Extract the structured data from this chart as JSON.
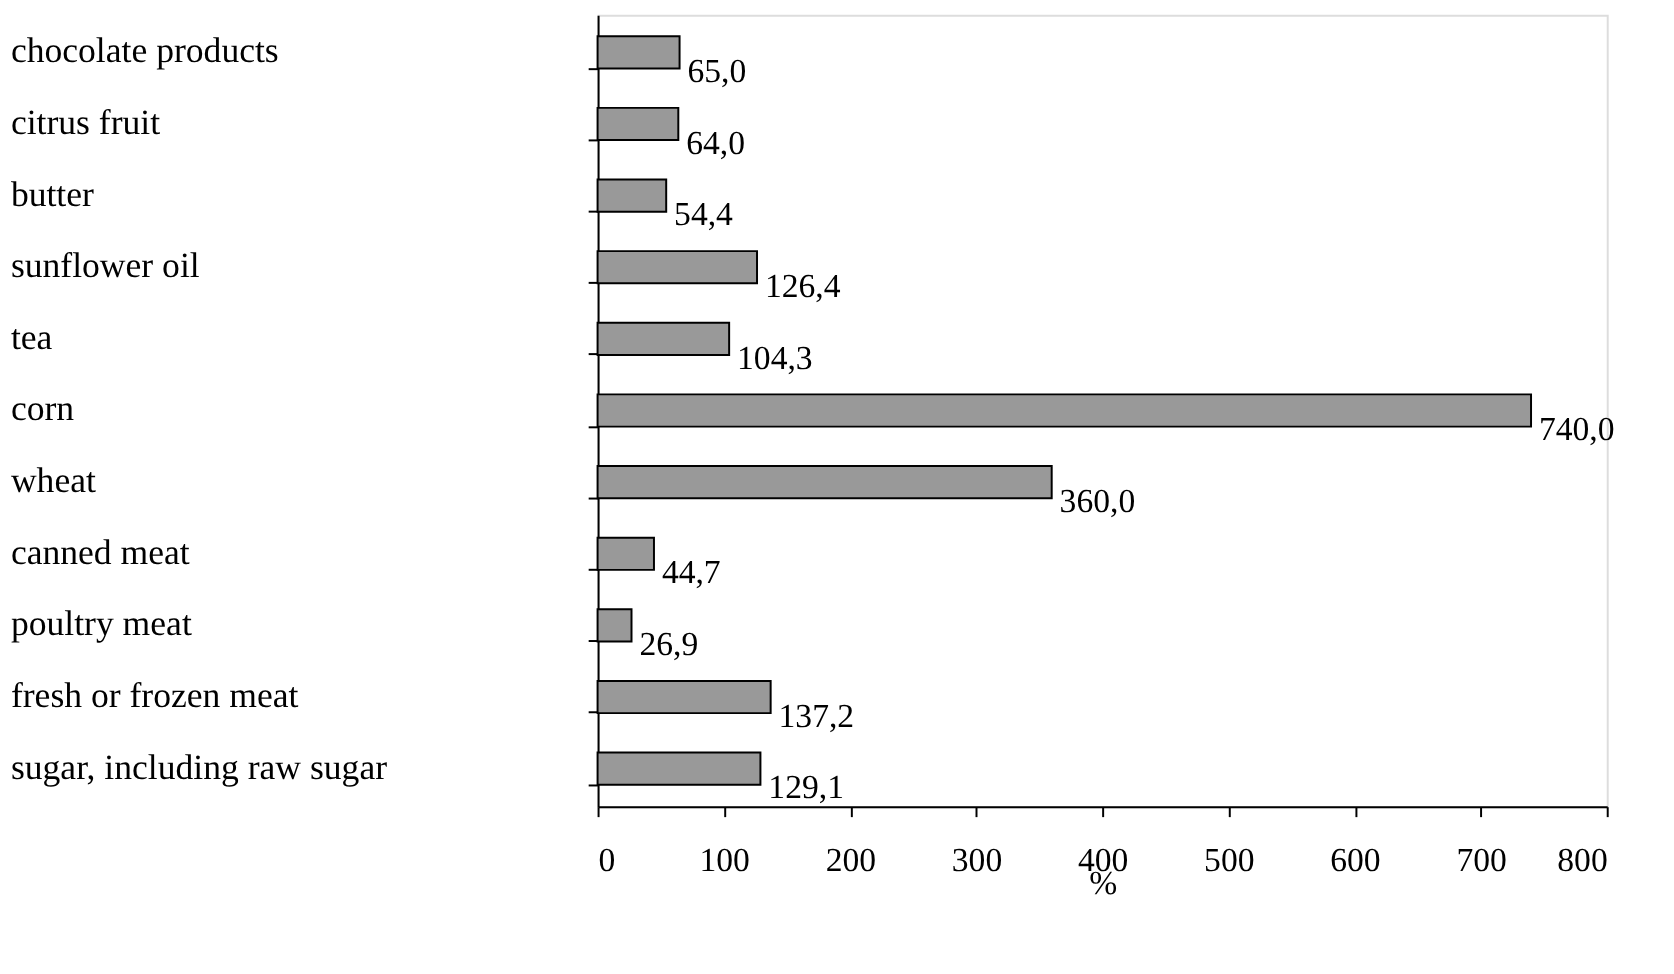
{
  "chart_data": {
    "type": "bar",
    "orientation": "horizontal",
    "xlabel": "%",
    "categories": [
      "chocolate products",
      "citrus fruit",
      "butter",
      "sunflower oil",
      "tea",
      "corn",
      "wheat",
      "canned meat",
      "poultry meat",
      "fresh or frozen meat",
      "sugar, including raw sugar"
    ],
    "values": [
      65.0,
      64.0,
      54.4,
      126.4,
      104.3,
      740.0,
      360.0,
      44.7,
      26.9,
      137.2,
      129.1
    ],
    "value_labels": [
      "65,0",
      "64,0",
      "54,4",
      "126,4",
      "104,3",
      "740,0",
      "360,0",
      "44,7",
      "26,9",
      "137,2",
      "129,1"
    ],
    "color": "#999999",
    "xlim": [
      0,
      800
    ],
    "xticks": [
      0,
      100,
      200,
      300,
      400,
      500,
      600,
      700,
      800
    ],
    "grid": false
  }
}
